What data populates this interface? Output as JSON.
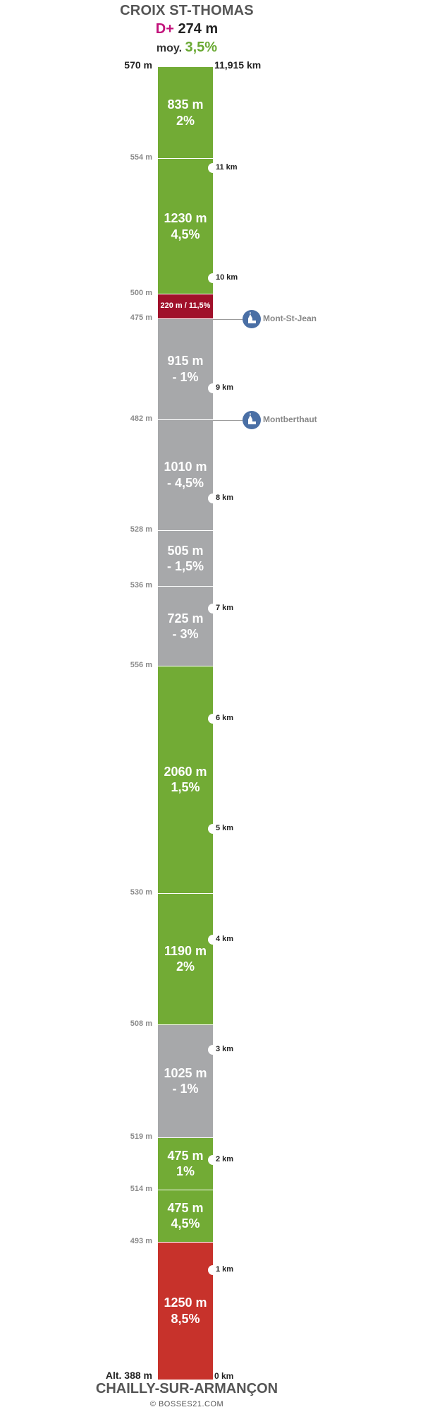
{
  "header": {
    "top_name": "CROIX ST-THOMAS",
    "gain_prefix": "D+",
    "gain_value": "274 m",
    "avg_prefix": "moy.",
    "avg_value": "3,5%",
    "top_altitude": "570 m",
    "total_distance": "11,915 km"
  },
  "footer": {
    "start_altitude": "Alt. 388 m",
    "start_distance": "0 km",
    "bottom_name": "CHAILLY-SUR-ARMANÇON",
    "credit": "© BOSSES21.COM"
  },
  "colors": {
    "climb": "#72ab35",
    "flat": "#a7a8aa",
    "steep": "#c7322b",
    "very_steep": "#a0102a"
  },
  "chart_data": {
    "type": "bar",
    "orientation": "vertical-profile",
    "total_km": 11.915,
    "segments_top_to_bottom": [
      {
        "length_m": 835,
        "length": "835 m",
        "grade": "2%",
        "kind": "climb",
        "top_alt": "570 m"
      },
      {
        "length_m": 1230,
        "length": "1230 m",
        "grade": "4,5%",
        "kind": "climb",
        "top_alt": "554 m"
      },
      {
        "length_m": 220,
        "length": "220 m / 11,5%",
        "grade": "",
        "kind": "very_steep",
        "top_alt": "500 m"
      },
      {
        "length_m": 915,
        "length": "915 m",
        "grade": "- 1%",
        "kind": "flat",
        "top_alt": "475 m"
      },
      {
        "length_m": 1010,
        "length": "1010 m",
        "grade": "- 4,5%",
        "kind": "flat",
        "top_alt": "482 m"
      },
      {
        "length_m": 505,
        "length": "505 m",
        "grade": "- 1,5%",
        "kind": "flat",
        "top_alt": "528 m"
      },
      {
        "length_m": 725,
        "length": "725 m",
        "grade": "- 3%",
        "kind": "flat",
        "top_alt": "536 m"
      },
      {
        "length_m": 2060,
        "length": "2060 m",
        "grade": "1,5%",
        "kind": "climb",
        "top_alt": "556 m"
      },
      {
        "length_m": 1190,
        "length": "1190 m",
        "grade": "2%",
        "kind": "climb",
        "top_alt": "530 m"
      },
      {
        "length_m": 1025,
        "length": "1025 m",
        "grade": "- 1%",
        "kind": "flat",
        "top_alt": "508 m"
      },
      {
        "length_m": 475,
        "length": "475 m",
        "grade": "1%",
        "kind": "climb",
        "top_alt": "519 m"
      },
      {
        "length_m": 475,
        "length": "475 m",
        "grade": "4,5%",
        "kind": "climb",
        "top_alt": "514 m"
      },
      {
        "length_m": 1250,
        "length": "1250 m",
        "grade": "8,5%",
        "kind": "steep",
        "top_alt": "493 m"
      }
    ],
    "km_markers": [
      {
        "km": 1,
        "label": "1 km"
      },
      {
        "km": 2,
        "label": "2 km"
      },
      {
        "km": 3,
        "label": "3 km"
      },
      {
        "km": 4,
        "label": "4 km"
      },
      {
        "km": 5,
        "label": "5 km"
      },
      {
        "km": 6,
        "label": "6 km"
      },
      {
        "km": 7,
        "label": "7 km"
      },
      {
        "km": 8,
        "label": "8 km"
      },
      {
        "km": 9,
        "label": "9 km"
      },
      {
        "km": 10,
        "label": "10 km"
      },
      {
        "km": 11,
        "label": "11 km"
      }
    ],
    "places": [
      {
        "name": "Mont-St-Jean",
        "km": 9.63,
        "icon": "church-icon"
      },
      {
        "name": "Montberthaut",
        "km": 8.715,
        "icon": "church-icon"
      }
    ]
  }
}
